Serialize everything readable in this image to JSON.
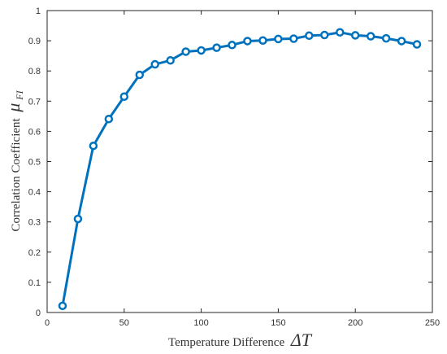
{
  "chart_data": {
    "type": "line",
    "xlabel": "Temperature Difference",
    "xlabel_symbol": "ΔT",
    "ylabel": "Correlation Coefficient",
    "ylabel_symbol": "μ",
    "ylabel_subscript": "FI",
    "xlim": [
      0,
      250
    ],
    "ylim": [
      0,
      1
    ],
    "xticks": [
      "0",
      "50",
      "100",
      "150",
      "200",
      "250"
    ],
    "yticks": [
      "0",
      "0.1",
      "0.2",
      "0.3",
      "0.4",
      "0.5",
      "0.6",
      "0.7",
      "0.8",
      "0.9",
      "1"
    ],
    "grid": false,
    "series": [
      {
        "color": "#0072BD",
        "marker": "circle",
        "x": [
          10,
          20,
          30,
          40,
          50,
          60,
          70,
          80,
          90,
          100,
          110,
          120,
          130,
          140,
          150,
          160,
          170,
          180,
          190,
          200,
          210,
          220,
          230,
          240
        ],
        "y": [
          0.022,
          0.31,
          0.552,
          0.641,
          0.715,
          0.787,
          0.822,
          0.835,
          0.864,
          0.868,
          0.877,
          0.886,
          0.899,
          0.901,
          0.906,
          0.907,
          0.917,
          0.919,
          0.928,
          0.918,
          0.915,
          0.908,
          0.899,
          0.888
        ]
      }
    ]
  }
}
